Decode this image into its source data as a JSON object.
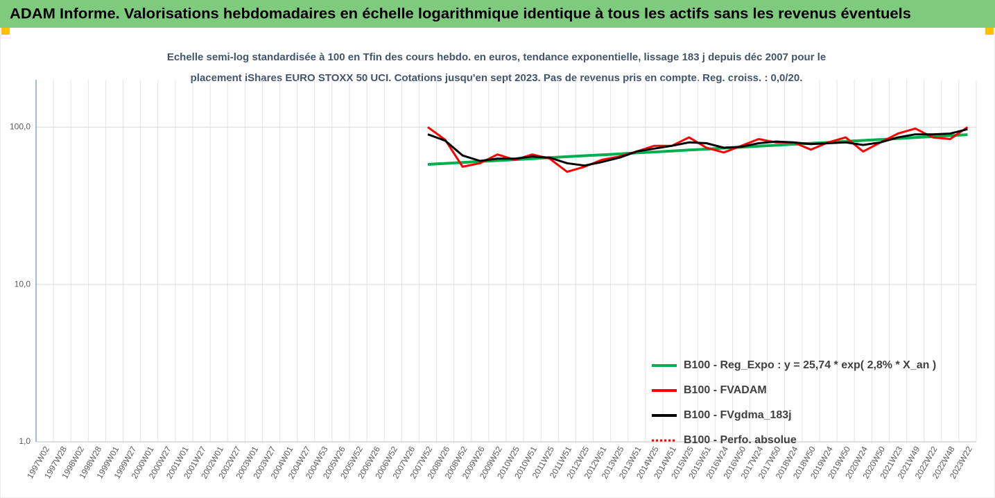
{
  "chart_data": {
    "type": "line",
    "title": "ADAM Informe. Valorisations hebdomadaires en échelle logarithmique identique à tous les actifs sans les revenus éventuels",
    "subtitle": [
      "Echelle semi-log standardisée à 100 en Tfin des cours hebdo. en euros, tendance exponentielle, lissage 183 j depuis déc 2007 pour le",
      "placement iShares EURO STOXX 50 UCI. Cotations jusqu'en sept 2023. Pas de revenus pris en compte. Reg. croiss. : 0,0/20."
    ],
    "categories": [
      "1997W02",
      "1997W28",
      "1998W02",
      "1998W28",
      "1999W01",
      "1999W27",
      "2000W01",
      "2000W27",
      "2001W01",
      "2001W27",
      "2002W01",
      "2002W27",
      "2003W01",
      "2003W27",
      "2004W01",
      "2004W27",
      "2004W53",
      "2005W26",
      "2005W52",
      "2006W26",
      "2006W52",
      "2007W26",
      "2007W52",
      "2008W26",
      "2008W52",
      "2009W26",
      "2009W52",
      "2010W25",
      "2010W51",
      "2011W25",
      "2011W51",
      "2012W25",
      "2012W51",
      "2013W25",
      "2013W51",
      "2014W25",
      "2014W51",
      "2015W25",
      "2015W51",
      "2016W24",
      "2016W50",
      "2017W24",
      "2017W50",
      "2018W24",
      "2018W50",
      "2019W24",
      "2019W50",
      "2020W24",
      "2020W50",
      "2021W23",
      "2021W49",
      "2022W22",
      "2022W48",
      "2023W22"
    ],
    "log_scale": true,
    "ylim": [
      1,
      200
    ],
    "yticks": [
      {
        "value": 1,
        "label": "1,0"
      },
      {
        "value": 10,
        "label": "10,0"
      },
      {
        "value": 100,
        "label": "100,0"
      }
    ],
    "grid": true,
    "legend": "lower right",
    "series": [
      {
        "name": "B100 - Reg_Expo : y = 25,74 * exp( 2,8% * X_an )",
        "color": "#00b050",
        "width": 4,
        "dash": false,
        "values": [
          null,
          null,
          null,
          null,
          null,
          null,
          null,
          null,
          null,
          null,
          null,
          null,
          null,
          null,
          null,
          null,
          null,
          null,
          null,
          null,
          null,
          null,
          58,
          58.8,
          59.6,
          60.5,
          61.3,
          62.2,
          63.1,
          64.0,
          64.9,
          65.8,
          66.7,
          67.6,
          68.6,
          69.5,
          70.5,
          71.5,
          72.5,
          73.6,
          74.6,
          75.7,
          76.7,
          77.8,
          78.9,
          80.0,
          81.2,
          82.3,
          83.5,
          84.7,
          85.9,
          87.1,
          88.3,
          89.6
        ]
      },
      {
        "name": "B100 - FVADAM",
        "color": "#ff0000",
        "width": 3,
        "dash": false,
        "values": [
          null,
          null,
          null,
          null,
          null,
          null,
          null,
          null,
          null,
          null,
          null,
          null,
          null,
          null,
          null,
          null,
          null,
          null,
          null,
          null,
          null,
          null,
          100,
          83,
          56,
          59,
          67,
          62,
          67,
          63,
          52,
          56,
          62,
          65,
          70,
          76,
          76,
          86,
          74,
          69,
          76,
          84,
          80,
          80,
          72,
          80,
          86,
          70,
          80,
          91,
          98,
          86,
          84,
          100
        ]
      },
      {
        "name": "B100 - FVgdma_183j",
        "color": "#000000",
        "width": 3,
        "dash": false,
        "values": [
          null,
          null,
          null,
          null,
          null,
          null,
          null,
          null,
          null,
          null,
          null,
          null,
          null,
          null,
          null,
          null,
          null,
          null,
          null,
          null,
          null,
          null,
          90,
          82,
          66,
          61,
          63,
          63,
          65,
          64,
          59,
          57,
          60,
          64,
          70,
          73,
          76,
          80,
          79,
          74,
          75,
          79,
          81,
          80,
          78,
          79,
          80,
          77,
          80,
          86,
          90,
          90,
          91,
          97
        ]
      },
      {
        "name": "B100 - Perfo. absolue",
        "color": "#ff0000",
        "width": 2,
        "dash": true,
        "values": [
          null,
          null,
          null,
          null,
          null,
          null,
          null,
          null,
          null,
          null,
          null,
          null,
          null,
          null,
          null,
          null,
          null,
          null,
          null,
          null,
          null,
          null,
          100,
          83,
          56,
          59,
          67,
          62,
          67,
          63,
          52,
          56,
          62,
          65,
          70,
          76,
          76,
          86,
          74,
          69,
          76,
          84,
          80,
          80,
          72,
          80,
          86,
          70,
          80,
          91,
          98,
          86,
          84,
          100
        ]
      }
    ]
  }
}
